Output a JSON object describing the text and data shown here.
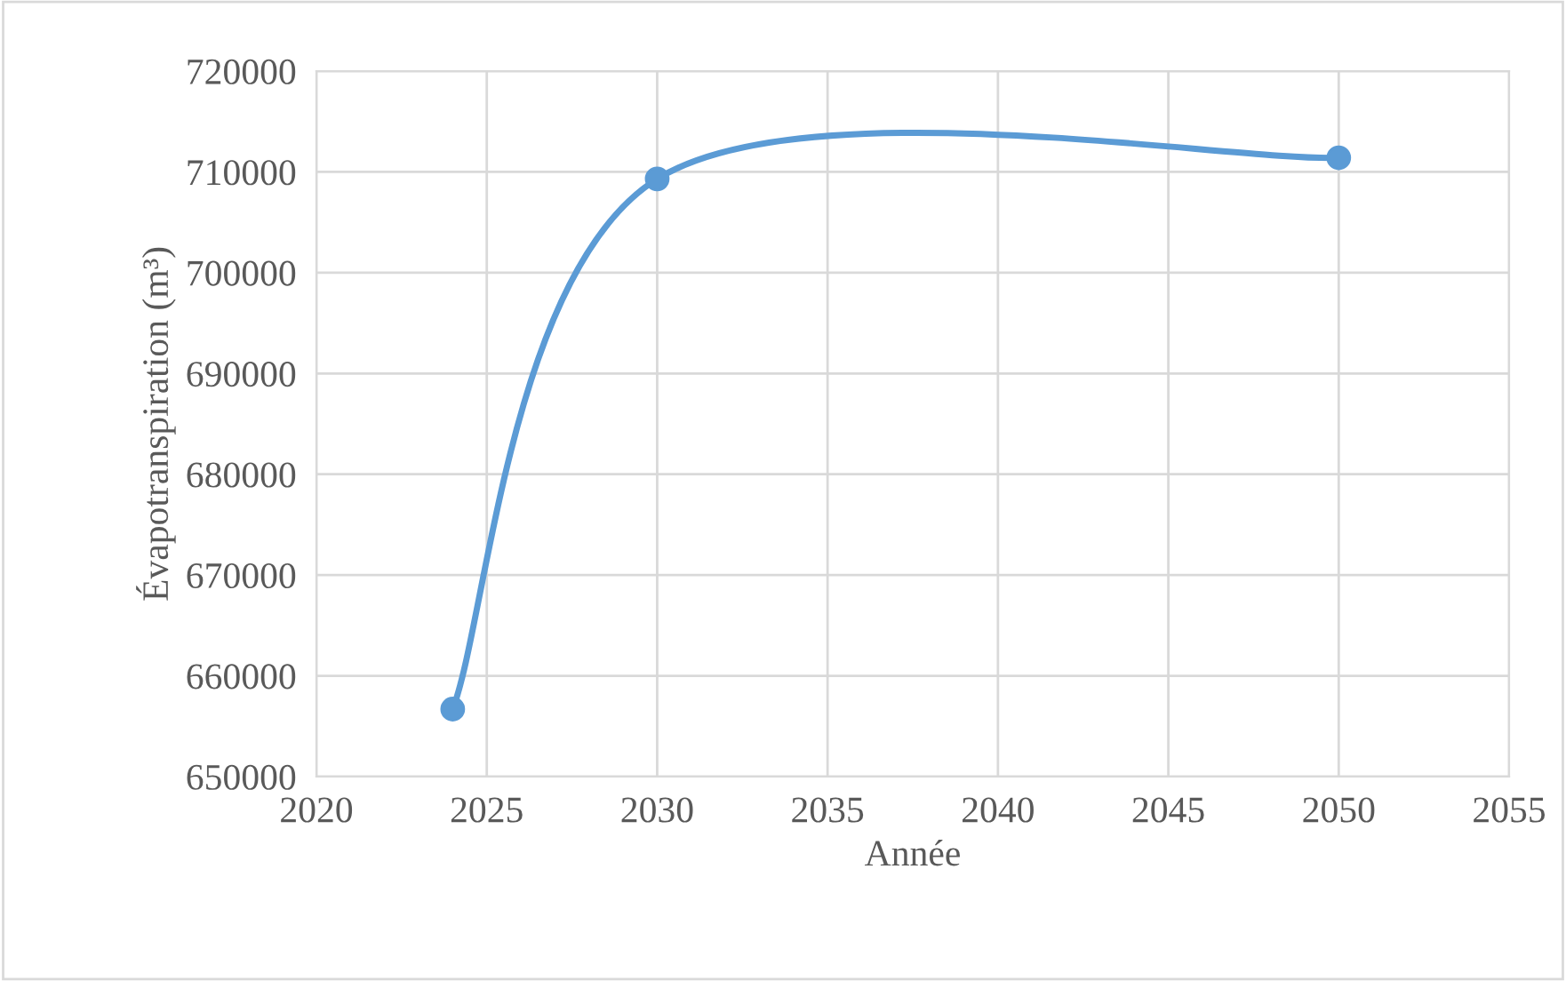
{
  "chart_data": {
    "type": "line",
    "xlabel": "Année",
    "ylabel": "Évapotranspiration (m³)",
    "x": [
      2024,
      2030,
      2050
    ],
    "series": [
      {
        "color": "#5b9bd5",
        "values": [
          656700,
          709300,
          711400
        ]
      }
    ],
    "xlim": [
      2020,
      2055
    ],
    "xticks": [
      2020,
      2025,
      2030,
      2035,
      2040,
      2045,
      2050,
      2055
    ],
    "ylim": [
      650000,
      720000
    ],
    "yticks": [
      650000,
      660000,
      670000,
      680000,
      690000,
      700000,
      710000,
      720000
    ],
    "grid": true,
    "marker": "circle",
    "line_style": "solid"
  }
}
